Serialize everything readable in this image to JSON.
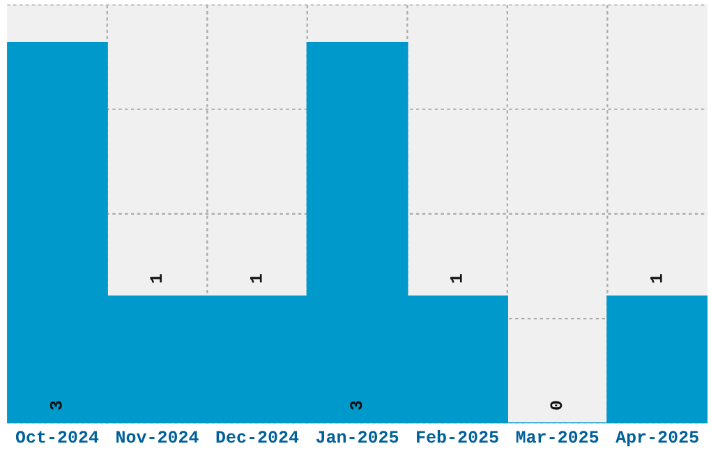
{
  "chart_data": {
    "type": "bar",
    "categories": [
      "Oct-2024",
      "Nov-2024",
      "Dec-2024",
      "Jan-2025",
      "Feb-2025",
      "Mar-2025",
      "Apr-2025"
    ],
    "values": [
      3,
      1,
      1,
      3,
      1,
      0,
      1
    ],
    "color": "#0099cc",
    "ylim": [
      0,
      3.3
    ],
    "yticks": [
      {
        "value": 0,
        "label": null
      },
      {
        "value": 0.825,
        "label": null
      },
      {
        "value": 1.65,
        "label": null
      },
      {
        "value": 2.475,
        "label": null
      },
      {
        "value": 3.3,
        "label": null
      }
    ],
    "grid": true,
    "data_labels": true,
    "tick_labels": "x"
  }
}
